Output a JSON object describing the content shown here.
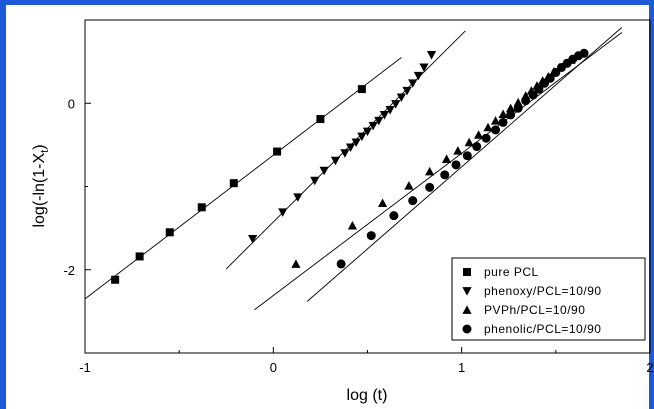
{
  "chart_data": {
    "type": "scatter",
    "title": "",
    "xlabel": "log (t)",
    "ylabel": "log(-ln(1-X",
    "ylabel_sub": "t",
    "ylabel_suffix": ")",
    "xlim": [
      -1,
      2
    ],
    "ylim": [
      -3,
      1
    ],
    "x_ticks": [
      -1,
      0,
      1,
      2
    ],
    "x_tick_labels": [
      "-1",
      "0",
      "1",
      "2"
    ],
    "y_ticks": [
      0,
      -2
    ],
    "y_tick_labels": [
      "0",
      "-2"
    ],
    "grid": false,
    "legend_position": "bottom-right",
    "series": [
      {
        "name": "pure PCL",
        "marker": "square",
        "x": [
          -0.84,
          -0.71,
          -0.55,
          -0.38,
          -0.21,
          0.02,
          0.25,
          0.47
        ],
        "y": [
          -2.12,
          -1.84,
          -1.55,
          -1.25,
          -0.96,
          -0.58,
          -0.19,
          0.17
        ],
        "fit": {
          "x": [
            -1.0,
            0.68
          ],
          "y": [
            -2.35,
            0.55
          ]
        }
      },
      {
        "name": "phenoxy/PCL=10/90",
        "marker": "triangle-down",
        "x": [
          -0.11,
          0.05,
          0.13,
          0.22,
          0.27,
          0.33,
          0.38,
          0.41,
          0.44,
          0.47,
          0.5,
          0.53,
          0.56,
          0.59,
          0.62,
          0.65,
          0.68,
          0.71,
          0.74,
          0.77,
          0.8,
          0.84
        ],
        "y": [
          -1.63,
          -1.31,
          -1.13,
          -0.93,
          -0.81,
          -0.69,
          -0.6,
          -0.53,
          -0.47,
          -0.4,
          -0.34,
          -0.27,
          -0.21,
          -0.14,
          -0.08,
          -0.01,
          0.07,
          0.15,
          0.24,
          0.33,
          0.43,
          0.58
        ],
        "fit": {
          "x": [
            -0.25,
            1.02
          ],
          "y": [
            -1.99,
            0.87
          ]
        }
      },
      {
        "name": "PVPh/PCL=10/90",
        "marker": "triangle-up",
        "x": [
          0.12,
          0.42,
          0.58,
          0.72,
          0.83,
          0.92,
          0.98,
          1.04,
          1.09,
          1.14,
          1.18,
          1.22,
          1.26,
          1.3,
          1.34,
          1.37,
          1.4,
          1.43,
          1.46,
          1.49,
          1.52,
          1.55,
          1.58,
          1.61,
          1.64
        ],
        "y": [
          -1.93,
          -1.47,
          -1.2,
          -0.99,
          -0.82,
          -0.67,
          -0.57,
          -0.47,
          -0.38,
          -0.29,
          -0.21,
          -0.13,
          -0.06,
          0.01,
          0.09,
          0.15,
          0.21,
          0.27,
          0.32,
          0.38,
          0.43,
          0.48,
          0.52,
          0.57,
          0.6
        ],
        "fit": {
          "x": [
            -0.1,
            1.85
          ],
          "y": [
            -2.48,
            0.85
          ]
        }
      },
      {
        "name": "phenolic/PCL=10/90",
        "marker": "circle",
        "x": [
          0.36,
          0.52,
          0.64,
          0.74,
          0.83,
          0.91,
          0.97,
          1.03,
          1.08,
          1.13,
          1.18,
          1.22,
          1.26,
          1.3,
          1.34,
          1.38,
          1.41,
          1.44,
          1.47,
          1.5,
          1.53,
          1.56,
          1.59,
          1.62,
          1.65
        ],
        "y": [
          -1.93,
          -1.59,
          -1.35,
          -1.17,
          -1.01,
          -0.86,
          -0.74,
          -0.63,
          -0.52,
          -0.42,
          -0.32,
          -0.23,
          -0.14,
          -0.06,
          0.03,
          0.1,
          0.17,
          0.24,
          0.3,
          0.37,
          0.43,
          0.48,
          0.53,
          0.57,
          0.6
        ],
        "fit": {
          "x": [
            0.18,
            1.85
          ],
          "y": [
            -2.38,
            0.91
          ]
        }
      }
    ]
  }
}
